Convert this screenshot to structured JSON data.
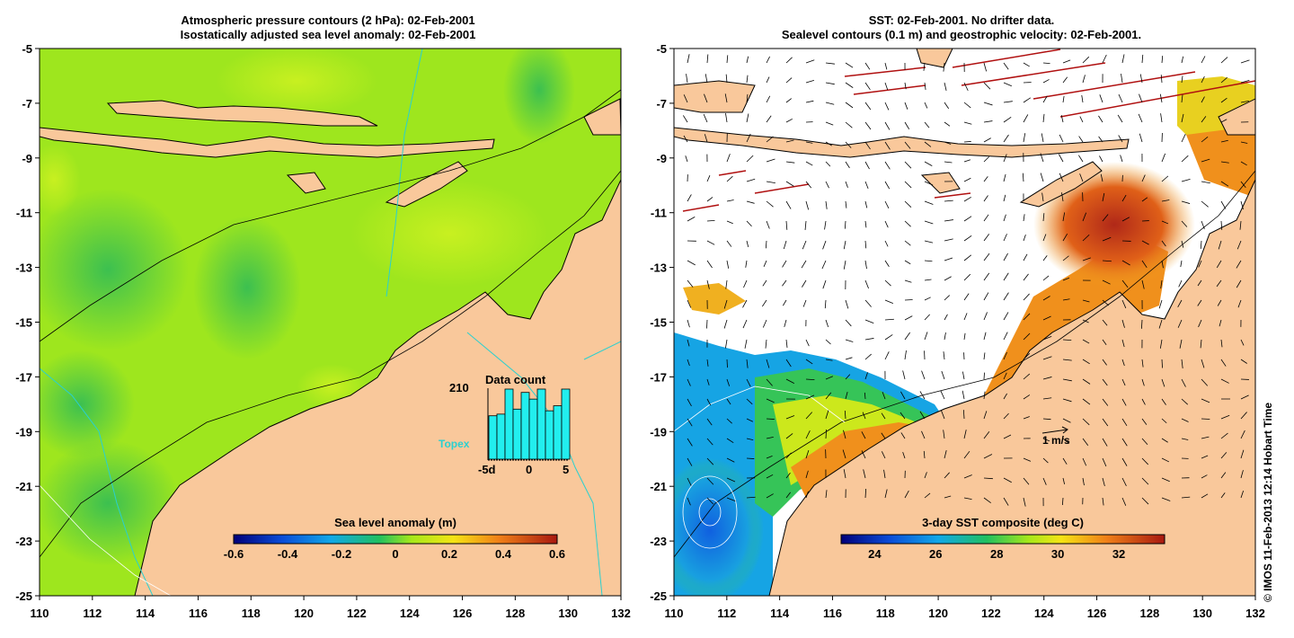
{
  "left_panel": {
    "title_line1": "Atmospheric pressure contours (2 hPa): 02-Feb-2001",
    "title_line2": "Isostatically adjusted sea level anomaly: 02-Feb-2001",
    "colorbar": {
      "label": "Sea level anomaly (m)",
      "ticks": [
        "-0.6",
        "-0.4",
        "-0.2",
        "0",
        "0.2",
        "0.4",
        "0.6"
      ]
    },
    "inset": {
      "title": "Data count",
      "max_label": "210",
      "x_ticks": [
        "-5d",
        "0",
        "5"
      ],
      "source_label": "Topex",
      "bar_values": [
        130,
        135,
        210,
        150,
        200,
        180,
        210,
        145,
        160,
        210
      ]
    }
  },
  "right_panel": {
    "title_line1": "SST: 02-Feb-2001. No drifter data.",
    "title_line2": "Sealevel contours (0.1 m) and geostrophic velocity: 02-Feb-2001.",
    "colorbar": {
      "label": "3-day SST composite (deg C)",
      "ticks": [
        "24",
        "26",
        "28",
        "30",
        "32"
      ]
    },
    "scale_label": "1 m/s"
  },
  "axes": {
    "x_ticks": [
      "110",
      "112",
      "114",
      "116",
      "118",
      "120",
      "122",
      "124",
      "126",
      "128",
      "130",
      "132"
    ],
    "y_ticks": [
      "-5",
      "-7",
      "-9",
      "-11",
      "-13",
      "-15",
      "-17",
      "-19",
      "-21",
      "-23",
      "-25"
    ]
  },
  "credit": "© IMOS 11-Feb-2013 12:14 Hobart Time",
  "colors": {
    "land": "#f9c89b",
    "ocean_anomaly": "#9ee61e",
    "coast": "#000000",
    "track": "#2ad0d0",
    "vector": "#000000"
  }
}
